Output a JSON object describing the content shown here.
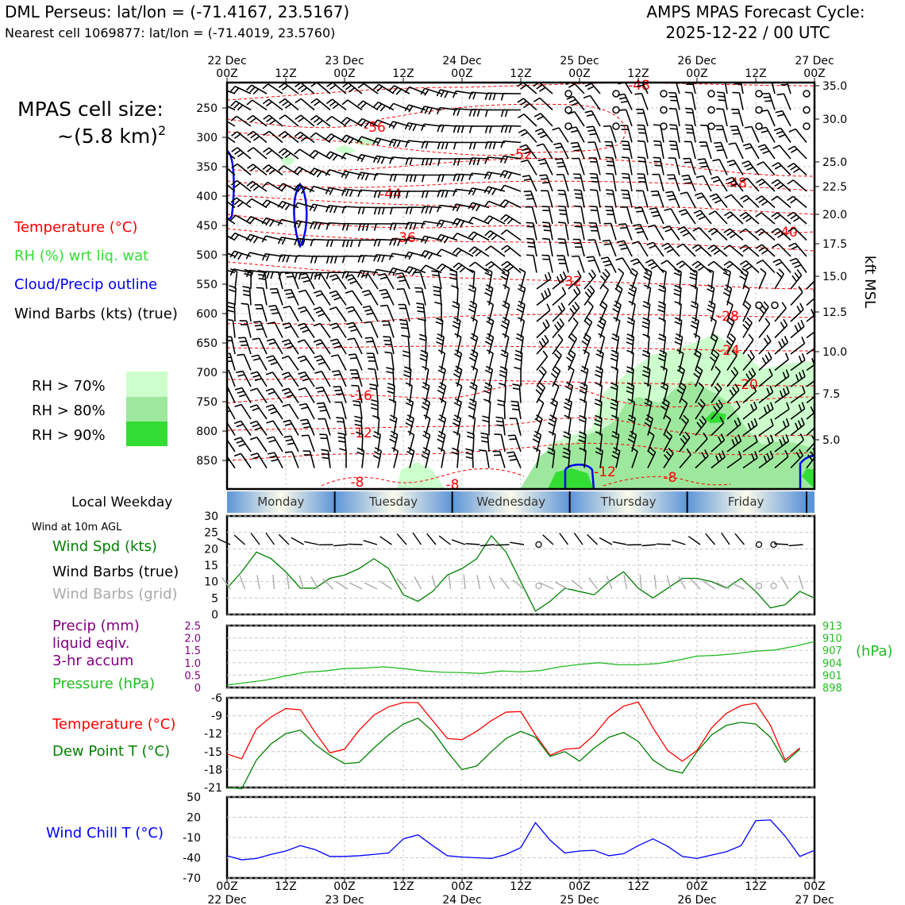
{
  "header": {
    "station": "DML Perseus: lat/lon = (-71.4167, 23.5167)",
    "nearest_cell": "Nearest cell 1069877: lat/lon = (-71.4019, 23.5760)",
    "cycle_line1": "AMPS MPAS Forecast Cycle:",
    "cycle_line2": "2025-12-22 / 00 UTC"
  },
  "cell_size": {
    "line1": "MPAS cell size:",
    "line2": "~(5.8 km)",
    "exp": "2"
  },
  "legend": {
    "temperature": "Temperature (°C)",
    "rh": "RH (%) wrt liq. wat",
    "cloud": "Cloud/Precip outline",
    "wind": "Wind Barbs (kts) (true)",
    "rh70": "RH > 70%",
    "rh80": "RH > 80%",
    "rh90": "RH > 90%"
  },
  "colors": {
    "temp": "#ff0000",
    "rh70": "#ccffcc",
    "rh80": "#9de89d",
    "rh90": "#33dd33",
    "cloud": "#0000ee",
    "wind_speed": "#008000",
    "dew": "#008000",
    "pressure": "#22bb22",
    "precip": "#800080",
    "wind_chill": "#0000ff",
    "grid_barb": "#aaaaaa"
  },
  "axes_labels": {
    "kft_msl": "kft MSL",
    "local_weekday": "Local Weekday",
    "wind_10m": "Wind at 10m AGL",
    "wind_spd": "Wind Spd (kts)",
    "wind_barbs_true": "Wind Barbs (true)",
    "wind_barbs_grid": "Wind Barbs (grid)",
    "precip1": "Precip (mm)",
    "precip2": "liquid eqiv.",
    "precip3": "3-hr accum",
    "pressure": "Pressure (hPa)",
    "hpa": "(hPa)",
    "temperature": "Temperature (°C)",
    "dewpoint": "Dew Point T (°C)",
    "wind_chill": "Wind Chill T (°C)"
  },
  "chart_data": [
    {
      "type": "time-height cross-section",
      "time_ticks": [
        {
          "top": "22 Dec",
          "bottom": "00Z"
        },
        {
          "top": "",
          "bottom": "12Z"
        },
        {
          "top": "23 Dec",
          "bottom": "00Z"
        },
        {
          "top": "",
          "bottom": "12Z"
        },
        {
          "top": "24 Dec",
          "bottom": "00Z"
        },
        {
          "top": "",
          "bottom": "12Z"
        },
        {
          "top": "25 Dec",
          "bottom": "00Z"
        },
        {
          "top": "",
          "bottom": "12Z"
        },
        {
          "top": "26 Dec",
          "bottom": "00Z"
        },
        {
          "top": "",
          "bottom": "12Z"
        },
        {
          "top": "27 Dec",
          "bottom": "00Z"
        }
      ],
      "pressure_ticks_hpa": [
        "250",
        "300",
        "350",
        "400",
        "450",
        "500",
        "550",
        "600",
        "650",
        "700",
        "750",
        "800",
        "850"
      ],
      "height_ticks_kft": [
        "35.0",
        "30.0",
        "25.0",
        "22.5",
        "20.0",
        "17.5",
        "15.0",
        "12.5",
        "10.0",
        "7.5",
        "5.0"
      ],
      "temperature_contour_labels_c": [
        "-48",
        "-56",
        "-52",
        "-48",
        "-44",
        "-40",
        "-36",
        "-32",
        "-28",
        "-24",
        "-20",
        "-16",
        "-12",
        "-12",
        "-8",
        "-8",
        "-8"
      ],
      "weekdays": [
        "Monday",
        "Tuesday",
        "Wednesday",
        "Thursday",
        "Friday"
      ]
    },
    {
      "type": "line",
      "title": "Wind Spd (kts)",
      "x_hours": [
        0,
        3,
        6,
        9,
        12,
        15,
        18,
        21,
        24,
        27,
        30,
        33,
        36,
        39,
        42,
        45,
        48,
        51,
        54,
        57,
        60,
        63,
        66,
        69,
        72,
        75,
        78,
        81,
        84,
        87,
        90,
        93,
        96,
        99,
        102,
        105,
        108,
        111,
        114,
        117,
        120
      ],
      "values": [
        8,
        13,
        19,
        17,
        13,
        8,
        8,
        11,
        12,
        14,
        17,
        14,
        6,
        4,
        7,
        12,
        14,
        17,
        24,
        19,
        10,
        1,
        4,
        8,
        7,
        6,
        10,
        13,
        8,
        5,
        8,
        11,
        11,
        10,
        8,
        11,
        7,
        2,
        3,
        7,
        5
      ],
      "ylim": [
        0,
        30
      ],
      "yticks": [
        "30",
        "25",
        "20",
        "15",
        "10",
        "5",
        "0"
      ]
    },
    {
      "type": "line",
      "title": "Pressure (hPa)",
      "values": [
        898.6,
        899.2,
        899.8,
        900.8,
        901.7,
        902.0,
        902.6,
        902.7,
        903.0,
        902.6,
        902.0,
        901.7,
        901.6,
        901.4,
        902.0,
        901.8,
        902.1,
        903.0,
        903.6,
        904.0,
        903.5,
        903.5,
        903.8,
        904.6,
        905.6,
        905.8,
        906.2,
        906.8,
        907.1,
        908.0,
        909.1
      ],
      "ylim": [
        898,
        913
      ],
      "right_yticks": [
        "913",
        "910",
        "907",
        "904",
        "901",
        "898"
      ],
      "precip_yticks": [
        "2.5",
        "2.0",
        "1.5",
        "1.0",
        "0.5",
        "0"
      ],
      "precip_values_mm": []
    },
    {
      "type": "line",
      "series": [
        {
          "name": "Temperature (°C)",
          "values": [
            -15.4,
            -16.2,
            -11.2,
            -9.2,
            -7.8,
            -8.0,
            -11.8,
            -15.2,
            -14.6,
            -11.4,
            -8.9,
            -7.5,
            -6.8,
            -6.8,
            -9.8,
            -12.8,
            -13.0,
            -11.6,
            -9.8,
            -8.4,
            -8.3,
            -12.2,
            -15.6,
            -14.6,
            -14.4,
            -12.2,
            -9.2,
            -7.4,
            -6.7,
            -11.0,
            -14.8,
            -16.6,
            -14.8,
            -11.0,
            -8.6,
            -7.3,
            -6.9,
            -10.6,
            -16.4,
            -14.4
          ],
          "x_hours": [
            0,
            3,
            6,
            9,
            12,
            15,
            18,
            21,
            24,
            27,
            30,
            33,
            36,
            39,
            42,
            45,
            48,
            51,
            54,
            57,
            60,
            63,
            66,
            69,
            72,
            75,
            78,
            81,
            84,
            87,
            90,
            93,
            96,
            99,
            102,
            105,
            108,
            111,
            114,
            117
          ]
        },
        {
          "name": "Dew Point T (°C)",
          "values": [
            -21,
            -21.2,
            -16.4,
            -13.7,
            -12,
            -11.4,
            -13.8,
            -15.6,
            -17,
            -16.8,
            -14.4,
            -12.2,
            -10.4,
            -9.4,
            -11.6,
            -15,
            -18,
            -17.4,
            -15,
            -12.8,
            -11.6,
            -12.6,
            -15.8,
            -15,
            -16.6,
            -14.4,
            -12.6,
            -11.8,
            -13.3,
            -16.4,
            -18,
            -18.6,
            -15,
            -12.2,
            -10.6,
            -10.1,
            -10.4,
            -12.6,
            -16.8,
            -14.6
          ],
          "x_hours": [
            0,
            3,
            6,
            9,
            12,
            15,
            18,
            21,
            24,
            27,
            30,
            33,
            36,
            39,
            42,
            45,
            48,
            51,
            54,
            57,
            60,
            63,
            66,
            69,
            72,
            75,
            78,
            81,
            84,
            87,
            90,
            93,
            96,
            99,
            102,
            105,
            108,
            111,
            114,
            117
          ]
        }
      ],
      "ylim": [
        -21,
        -6
      ],
      "yticks": [
        "-6",
        "-9",
        "-12",
        "-15",
        "-18",
        "-21"
      ]
    },
    {
      "type": "line",
      "title": "Wind Chill T (°C)",
      "x_hours": [
        0,
        3,
        6,
        9,
        12,
        15,
        18,
        21,
        24,
        27,
        30,
        33,
        36,
        39,
        42,
        45,
        48,
        51,
        54,
        57,
        60,
        63,
        66,
        69,
        72,
        75,
        78,
        81,
        84,
        87,
        90,
        93,
        96,
        99,
        102,
        105,
        108,
        111,
        114,
        117,
        120
      ],
      "values": [
        -37,
        -43,
        -41,
        -35,
        -30,
        -22,
        -28,
        -38,
        -38,
        -37,
        -35,
        -33,
        -12,
        -6,
        -22,
        -37,
        -39,
        -40,
        -41,
        -35,
        -25,
        12,
        -14,
        -33,
        -30,
        -29,
        -37,
        -34,
        -22,
        -12,
        -23,
        -38,
        -41,
        -36,
        -31,
        -22,
        15,
        16,
        -8,
        -38,
        -29
      ],
      "ylim": [
        -70,
        50
      ],
      "yticks": [
        "50",
        "20",
        "-10",
        "-40",
        "-70"
      ]
    }
  ]
}
